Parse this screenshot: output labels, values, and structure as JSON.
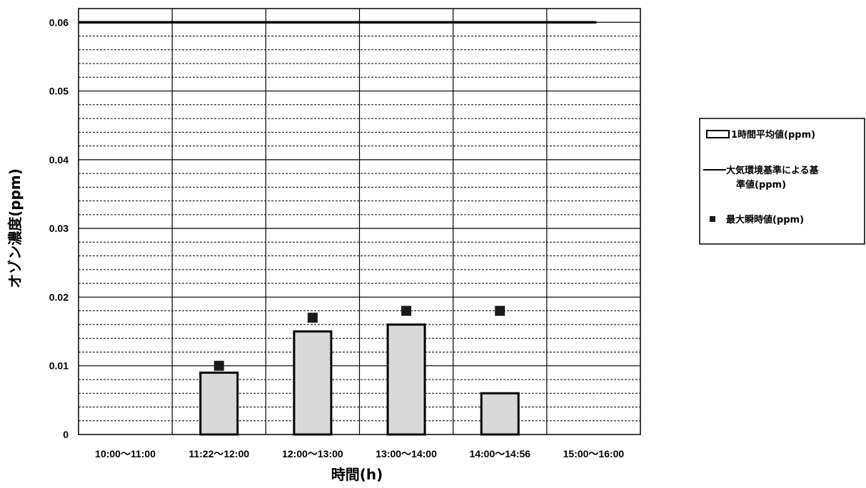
{
  "chart_data": {
    "type": "bar",
    "xlabel": "時間(h)",
    "ylabel": "オゾン濃度(ppm)",
    "ylim": [
      0,
      0.062
    ],
    "yticks": [
      "0",
      "0.01",
      "0.02",
      "0.03",
      "0.04",
      "0.05",
      "0.06"
    ],
    "grid": true,
    "legend_position": "right",
    "categories": [
      "10:00～11:00",
      "11:22～12:00",
      "12:00～13:00",
      "13:00～14:00",
      "14:00～14:56",
      "15:00～16:00"
    ],
    "series": [
      {
        "name": "1時間平均値(ppm)",
        "kind": "bar",
        "values": [
          null,
          0.009,
          0.015,
          0.016,
          0.006,
          null
        ]
      },
      {
        "name": "大気環境基準による基準値(ppm)",
        "kind": "line",
        "values": [
          0.06,
          0.06,
          0.06,
          0.06,
          0.06,
          0.06
        ]
      },
      {
        "name": "最大瞬時値(ppm)",
        "kind": "marker",
        "values": [
          null,
          0.01,
          0.017,
          0.018,
          0.018,
          null
        ]
      }
    ],
    "legend": {
      "line1": "1時間平均値(ppm)",
      "line2a": "大気環境基準による基",
      "line2b": "準値(ppm)",
      "line3": "最大瞬時値(ppm)"
    },
    "colors": {
      "bar_fill": "#d9d9d9",
      "line": "#000000",
      "marker": "#1a1a1a",
      "grid": "#000000"
    }
  }
}
